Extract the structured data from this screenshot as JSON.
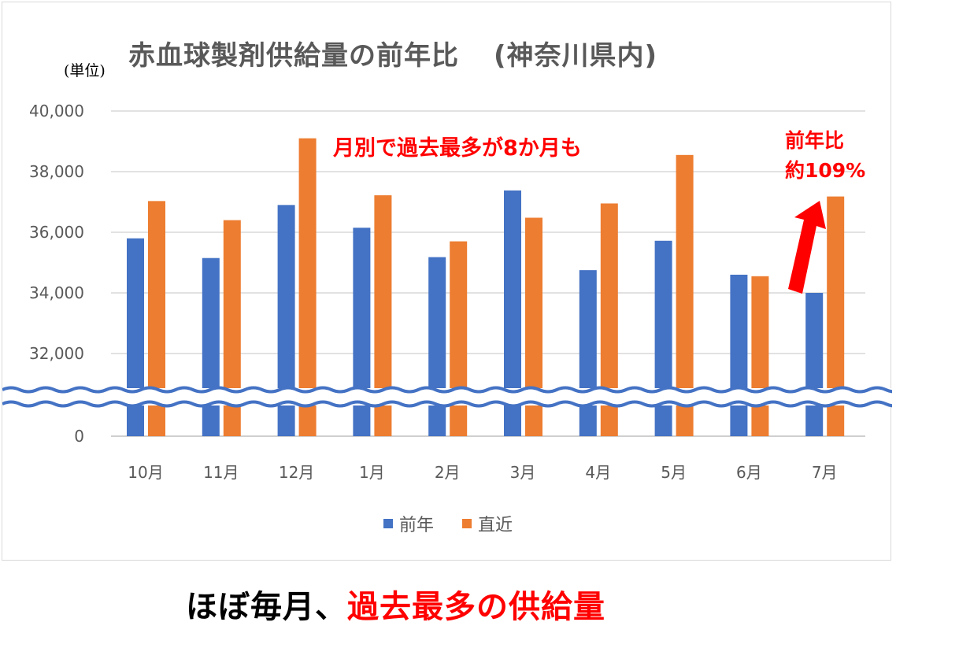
{
  "chart_data": {
    "type": "bar",
    "title": "赤血球製剤供給量の前年比",
    "title_region": "(神奈川県内)",
    "unit_label": "(単位)",
    "categories": [
      "10月",
      "11月",
      "12月",
      "1月",
      "2月",
      "3月",
      "4月",
      "5月",
      "6月",
      "7月"
    ],
    "series": [
      {
        "name": "前年",
        "color": "#4472c4",
        "values": [
          35800,
          35150,
          36900,
          36150,
          35180,
          37380,
          34750,
          35720,
          34600,
          34000
        ]
      },
      {
        "name": "直近",
        "color": "#ed7d31",
        "values": [
          37030,
          36400,
          39100,
          37220,
          35700,
          36480,
          36950,
          38550,
          34550,
          37180
        ]
      }
    ],
    "y_ticks": [
      0,
      32000,
      34000,
      36000,
      38000,
      40000
    ],
    "y_tick_labels": [
      "0",
      "32,000",
      "34,000",
      "36,000",
      "38,000",
      "40,000"
    ],
    "ylim": [
      30000,
      40000
    ],
    "axis_break": true,
    "grid": true,
    "legend_position": "bottom",
    "annotations": {
      "record_note": "月別で過去最多が8か月も",
      "yoy_line1": "前年比",
      "yoy_line2": "約109%",
      "annotation_color": "#ff0000"
    }
  },
  "caption": {
    "part1": "ほぼ毎月、",
    "part2": "過去最多の供給量"
  }
}
